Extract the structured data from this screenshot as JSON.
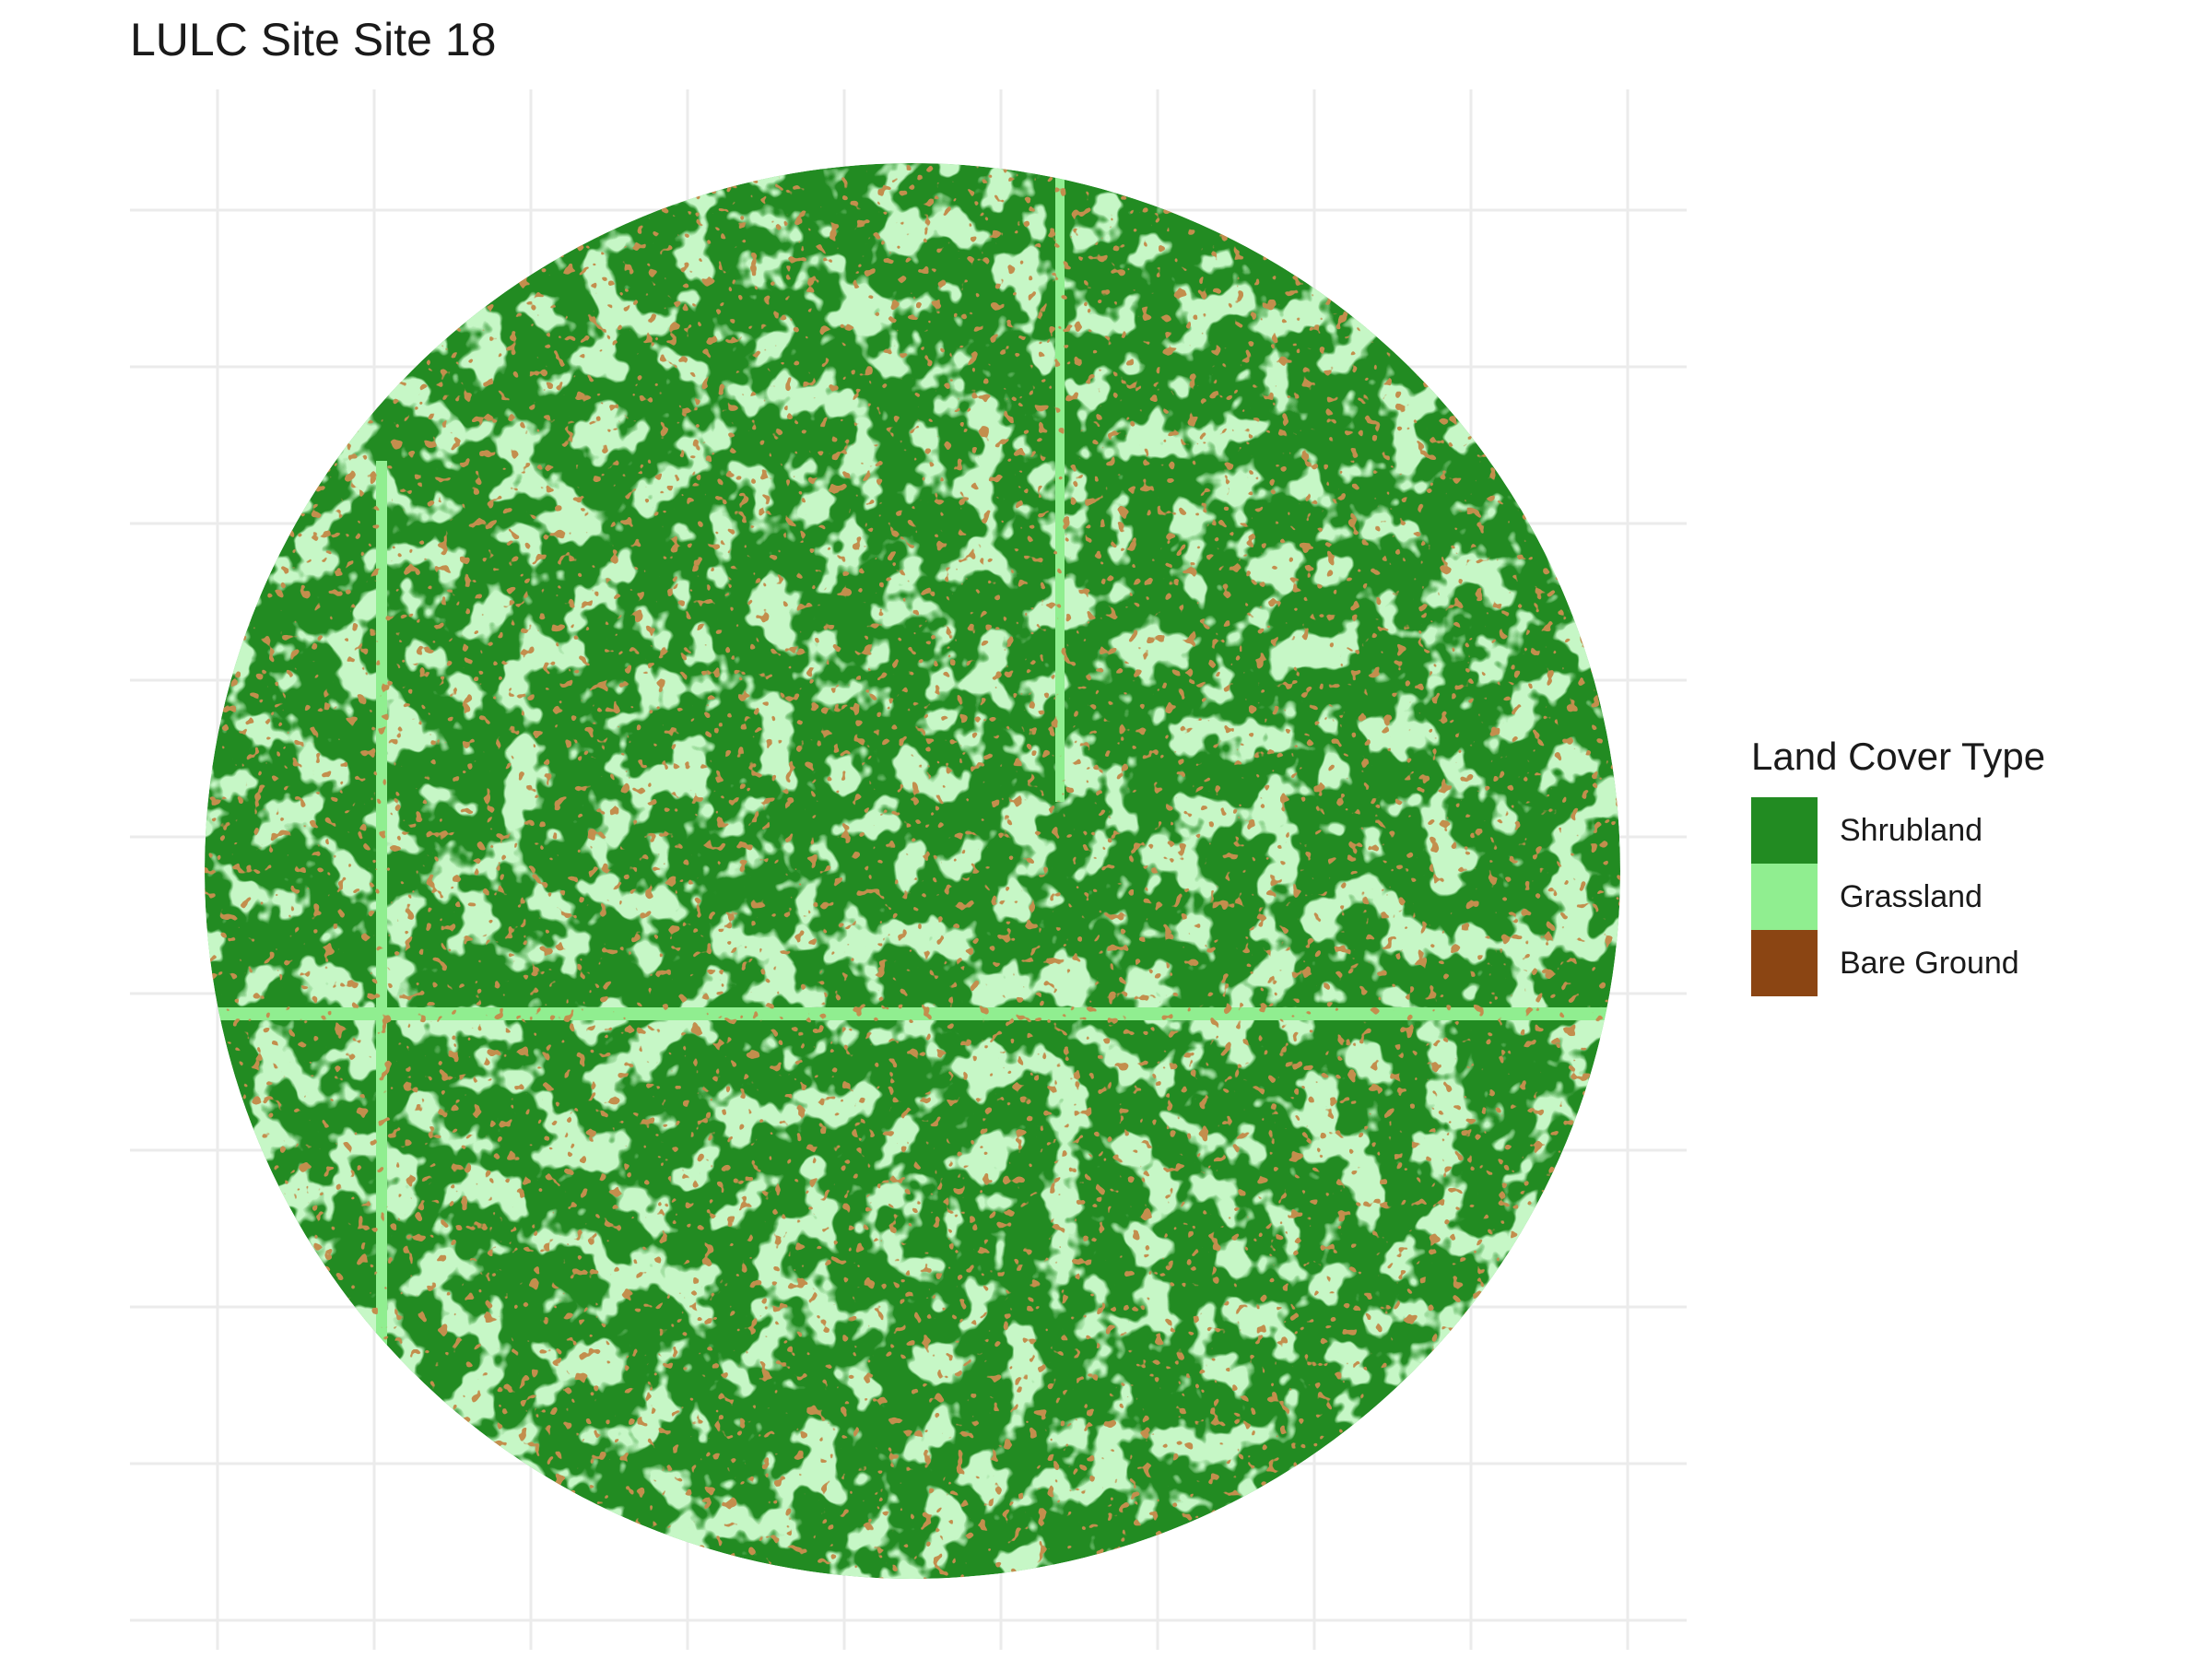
{
  "title": "LULC Site Site 18",
  "legend": {
    "title": "Land Cover Type",
    "items": [
      {
        "label": "Shrubland",
        "color": "#228B22"
      },
      {
        "label": "Grassland",
        "color": "#90EE90"
      },
      {
        "label": "Bare Ground",
        "color": "#8B4513"
      }
    ]
  },
  "map": {
    "background_class": "Shrubland",
    "shape": "circle",
    "grid": true,
    "grid_color": "#ebebeb"
  }
}
